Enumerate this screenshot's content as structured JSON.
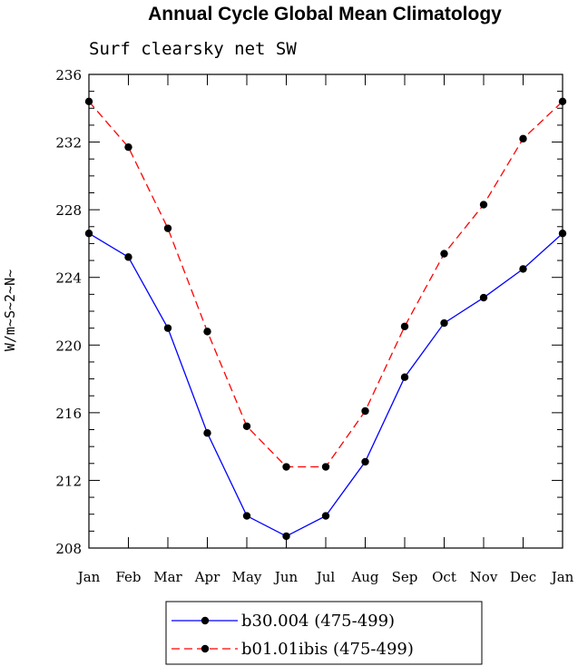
{
  "chart_data": {
    "type": "line",
    "title": "Annual Cycle Global Mean Climatology",
    "subtitle": "Surf clearsky net SW",
    "xlabel": "",
    "ylabel": "W/m~S~2~N~",
    "categories": [
      "Jan",
      "Feb",
      "Mar",
      "Apr",
      "May",
      "Jun",
      "Jul",
      "Aug",
      "Sep",
      "Oct",
      "Nov",
      "Dec",
      "Jan"
    ],
    "ylim": [
      208,
      236
    ],
    "yticks": [
      "208",
      "212",
      "216",
      "220",
      "224",
      "228",
      "232",
      "236"
    ],
    "grid": false,
    "legend_position": "bottom",
    "series": [
      {
        "name": "b30.004 (475-499)",
        "color": "#0000ff",
        "line_style": "solid",
        "marker": "filled-circle",
        "values": [
          226.6,
          225.2,
          221.0,
          214.8,
          209.9,
          208.7,
          209.9,
          213.1,
          218.1,
          221.3,
          222.8,
          224.5,
          226.6
        ]
      },
      {
        "name": "b01.01ibis (475-499)",
        "color": "#ff0000",
        "line_style": "dashed",
        "marker": "filled-circle",
        "values": [
          234.4,
          231.7,
          226.9,
          220.8,
          215.2,
          212.8,
          212.8,
          216.1,
          221.1,
          225.4,
          228.3,
          232.2,
          234.4
        ]
      }
    ]
  }
}
